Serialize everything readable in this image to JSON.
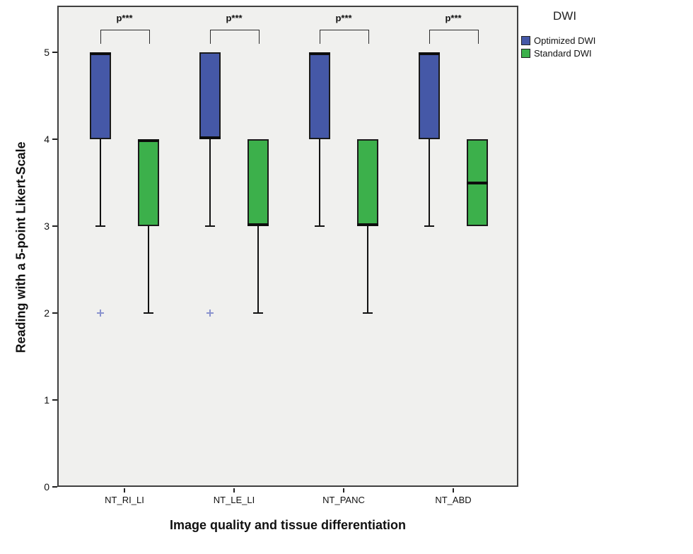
{
  "chart_data": {
    "type": "boxplot",
    "title": "",
    "xlabel": "Image quality and tissue differentiation",
    "ylabel": "Reading with a 5-point Likert-Scale",
    "categories": [
      "NT_RI_LI",
      "NT_LE_LI",
      "NT_PANC",
      "NT_ABD"
    ],
    "yticks": [
      0,
      1,
      2,
      3,
      4,
      5
    ],
    "ylim": [
      0,
      5.5
    ],
    "grid": false,
    "plot_background": "#F0F0EE",
    "legend": {
      "title": "DWI",
      "position": "outside-top-right"
    },
    "series": [
      {
        "name": "Optimized DWI",
        "color": "#4558A7",
        "boxes": [
          {
            "category": "NT_RI_LI",
            "q1": 4,
            "median": 5,
            "q3": 5,
            "whisker_low": 3,
            "whisker_high": 5,
            "outliers": [
              2
            ]
          },
          {
            "category": "NT_LE_LI",
            "q1": 4,
            "median": 4,
            "q3": 5,
            "whisker_low": 3,
            "whisker_high": 5,
            "outliers": [
              2
            ]
          },
          {
            "category": "NT_PANC",
            "q1": 4,
            "median": 5,
            "q3": 5,
            "whisker_low": 3,
            "whisker_high": 5,
            "outliers": []
          },
          {
            "category": "NT_ABD",
            "q1": 4,
            "median": 5,
            "q3": 5,
            "whisker_low": 3,
            "whisker_high": 5,
            "outliers": []
          }
        ]
      },
      {
        "name": "Standard DWI",
        "color": "#3CB04B",
        "boxes": [
          {
            "category": "NT_RI_LI",
            "q1": 3,
            "median": 4,
            "q3": 4,
            "whisker_low": 2,
            "whisker_high": 4,
            "outliers": []
          },
          {
            "category": "NT_LE_LI",
            "q1": 3,
            "median": 3,
            "q3": 4,
            "whisker_low": 2,
            "whisker_high": 4,
            "outliers": []
          },
          {
            "category": "NT_PANC",
            "q1": 3,
            "median": 3,
            "q3": 4,
            "whisker_low": 2,
            "whisker_high": 4,
            "outliers": []
          },
          {
            "category": "NT_ABD",
            "q1": 3,
            "median": 3.5,
            "q3": 4,
            "whisker_low": 3,
            "whisker_high": 4,
            "outliers": []
          }
        ]
      }
    ],
    "significance_annotations": [
      {
        "category": "NT_RI_LI",
        "label": "p***"
      },
      {
        "category": "NT_LE_LI",
        "label": "p***"
      },
      {
        "category": "NT_PANC",
        "label": "p***"
      },
      {
        "category": "NT_ABD",
        "label": "p***"
      }
    ],
    "outlier_marker": {
      "shape": "plus",
      "color": "#8A93CE"
    }
  }
}
